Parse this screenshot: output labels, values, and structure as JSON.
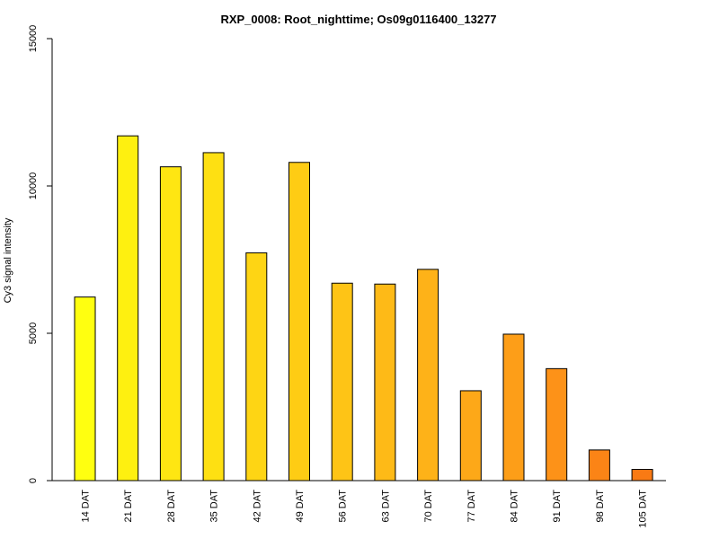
{
  "chart_data": {
    "type": "bar",
    "title": "RXP_0008: Root_nighttime; Os09g0116400_13277",
    "xlabel": "",
    "ylabel": "Cy3 signal intensity",
    "ylim": [
      0,
      15000
    ],
    "yticks": [
      0,
      5000,
      10000,
      15000
    ],
    "grid": false,
    "legend": "none",
    "categories": [
      "14 DAT",
      "21 DAT",
      "28 DAT",
      "35 DAT",
      "42 DAT",
      "49 DAT",
      "56 DAT",
      "63 DAT",
      "70 DAT",
      "77 DAT",
      "84 DAT",
      "91 DAT",
      "98 DAT",
      "105 DAT"
    ],
    "values": [
      6230,
      11700,
      10650,
      11130,
      7730,
      10800,
      6700,
      6670,
      7170,
      3050,
      4970,
      3800,
      1040,
      380
    ],
    "colors": [
      "#FFFF10",
      "#FEF010",
      "#FEE612",
      "#FEE012",
      "#FED514",
      "#FECC14",
      "#FEC416",
      "#FEBA17",
      "#FEB218",
      "#FDA818",
      "#FD9E18",
      "#FD9218",
      "#FB8416",
      "#F97A14"
    ]
  }
}
